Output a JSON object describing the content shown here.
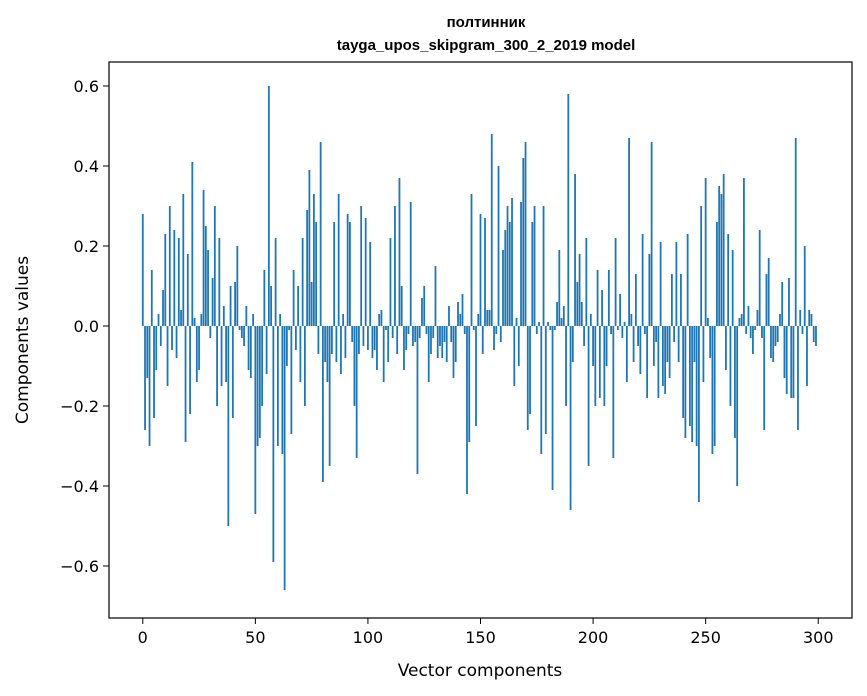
{
  "chart_data": {
    "type": "bar",
    "title": "полтинник",
    "subtitle": "tayga_upos_skipgram_300_2_2019 model",
    "xlabel": "Vector components",
    "ylabel": "Components values",
    "xlim": [
      -15,
      315
    ],
    "ylim": [
      -0.73,
      0.66
    ],
    "xticks": [
      0,
      50,
      100,
      150,
      200,
      250,
      300
    ],
    "yticks": [
      -0.6,
      -0.4,
      -0.2,
      0.0,
      0.2,
      0.4,
      0.6
    ],
    "ytick_labels": [
      "−0.6",
      "−0.4",
      "−0.2",
      "0.0",
      "0.2",
      "0.4",
      "0.6"
    ],
    "grid": false,
    "bar_color": "#1f77b4",
    "values": [
      0.28,
      -0.26,
      -0.13,
      -0.3,
      0.14,
      -0.23,
      -0.11,
      0.03,
      -0.05,
      0.09,
      0.23,
      -0.15,
      0.3,
      -0.06,
      0.24,
      -0.08,
      0.22,
      0.04,
      0.33,
      -0.29,
      0.18,
      -0.22,
      0.41,
      0.02,
      -0.14,
      -0.11,
      0.03,
      0.34,
      0.25,
      0.19,
      -0.03,
      0.12,
      0.3,
      -0.2,
      0.22,
      -0.15,
      0.05,
      -0.14,
      -0.5,
      0.1,
      -0.23,
      0.11,
      0.2,
      -0.01,
      -0.03,
      -0.05,
      0.05,
      -0.11,
      -0.13,
      0.03,
      -0.47,
      -0.3,
      -0.28,
      -0.2,
      0.14,
      -0.12,
      0.6,
      0.1,
      -0.59,
      0.22,
      -0.3,
      0.03,
      -0.32,
      -0.66,
      -0.1,
      -0.01,
      -0.27,
      0.14,
      -0.06,
      0.1,
      -0.14,
      0.22,
      -0.2,
      0.29,
      0.39,
      0.11,
      0.33,
      0.26,
      -0.07,
      0.46,
      -0.39,
      -0.09,
      -0.14,
      -0.35,
      -0.07,
      0.26,
      -0.09,
      0.33,
      -0.12,
      0.03,
      -0.08,
      0.28,
      0.26,
      -0.04,
      -0.2,
      -0.33,
      -0.07,
      0.3,
      -0.05,
      0.27,
      -0.06,
      0.21,
      -0.08,
      -0.06,
      -0.11,
      0.03,
      0.04,
      -0.14,
      -0.01,
      -0.09,
      0.22,
      -0.03,
      0.3,
      -0.07,
      0.37,
      0.1,
      -0.11,
      -0.06,
      -0.02,
      0.31,
      -0.05,
      -0.04,
      -0.37,
      -0.03,
      0.07,
      0.1,
      -0.02,
      -0.14,
      -0.07,
      -0.03,
      0.15,
      -0.08,
      -0.05,
      -0.08,
      -0.04,
      -0.09,
      0.05,
      -0.04,
      -0.13,
      -0.09,
      0.06,
      0.03,
      0.08,
      -0.02,
      -0.42,
      -0.29,
      0.33,
      -0.01,
      -0.25,
      0.03,
      0.28,
      -0.07,
      0.27,
      0.04,
      0.04,
      0.48,
      -0.06,
      -0.02,
      0.4,
      -0.04,
      0.19,
      0.24,
      0.3,
      0.26,
      0.32,
      -0.15,
      0.02,
      -0.1,
      0.31,
      0.42,
      0.46,
      -0.26,
      -0.22,
      0.26,
      0.3,
      -0.02,
      0.01,
      -0.32,
      0.3,
      -0.27,
      0.01,
      -0.01,
      -0.41,
      -0.01,
      0.06,
      0.19,
      0.02,
      0.05,
      -0.2,
      0.58,
      -0.46,
      -0.09,
      0.38,
      0.11,
      0.18,
      0.06,
      -0.05,
      0.22,
      -0.35,
      0.03,
      -0.1,
      -0.2,
      0.14,
      -0.18,
      0.09,
      -0.2,
      -0.1,
      0.14,
      -0.02,
      -0.33,
      0.22,
      -0.01,
      0.08,
      -0.03,
      0.01,
      -0.14,
      0.47,
      0.03,
      -0.09,
      0.13,
      -0.05,
      -0.12,
      0.23,
      -0.02,
      -0.18,
      0.18,
      0.46,
      -0.1,
      -0.04,
      -0.18,
      0.21,
      -0.15,
      -0.17,
      -0.09,
      -0.13,
      0.13,
      -0.04,
      0.21,
      -0.09,
      0.13,
      -0.23,
      -0.28,
      0.23,
      -0.25,
      -0.29,
      -0.09,
      -0.3,
      -0.44,
      0.3,
      -0.14,
      0.37,
      0.02,
      -0.08,
      -0.32,
      -0.3,
      0.26,
      0.35,
      0.33,
      0.38,
      -0.11,
      0.23,
      -0.2,
      0.19,
      -0.28,
      -0.4,
      0.02,
      0.03,
      0.37,
      -0.02,
      0.05,
      -0.03,
      -0.07,
      -0.01,
      0.04,
      0.24,
      -0.03,
      -0.26,
      0.13,
      0.17,
      -0.08,
      -0.09,
      -0.05,
      -0.04,
      0.03,
      0.11,
      -0.13,
      -0.17,
      0.12,
      -0.18,
      -0.18,
      0.47,
      -0.26,
      0.04,
      -0.02,
      0.2,
      -0.15,
      0.04,
      0.03,
      -0.04,
      -0.05
    ]
  }
}
